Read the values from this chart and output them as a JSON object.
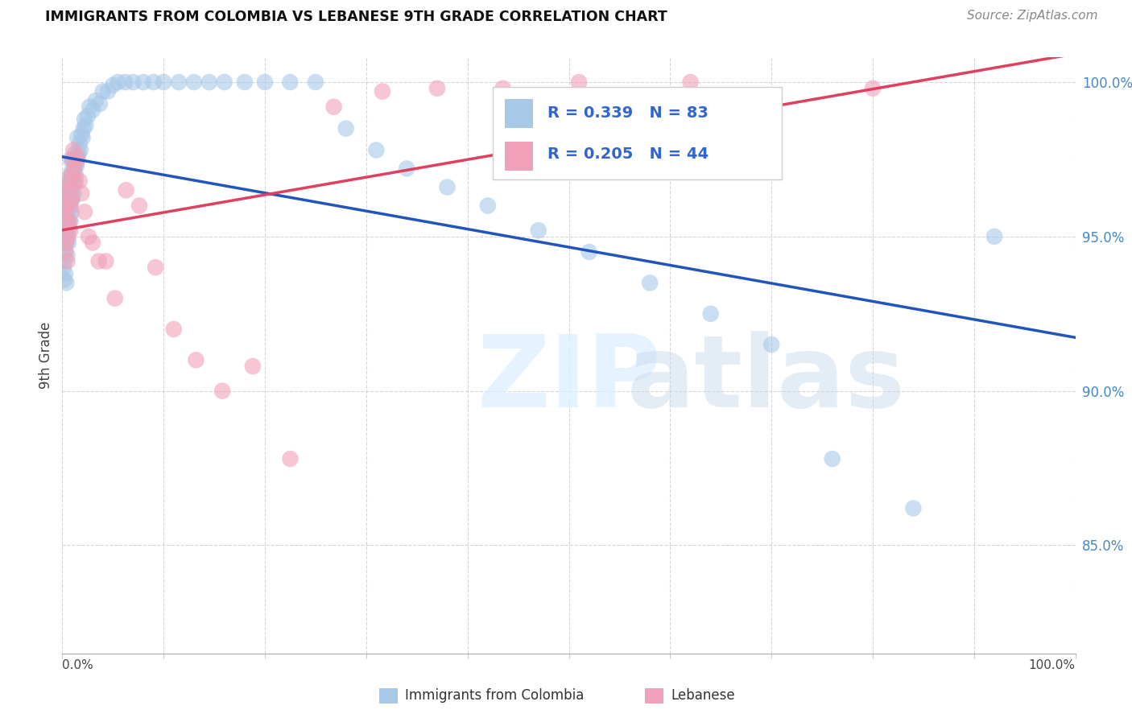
{
  "title": "IMMIGRANTS FROM COLOMBIA VS LEBANESE 9TH GRADE CORRELATION CHART",
  "source": "Source: ZipAtlas.com",
  "ylabel": "9th Grade",
  "xlim": [
    0.0,
    1.0
  ],
  "ylim": [
    0.815,
    1.008
  ],
  "yticks": [
    0.85,
    0.9,
    0.95,
    1.0
  ],
  "ytick_labels": [
    "85.0%",
    "90.0%",
    "95.0%",
    "100.0%"
  ],
  "legend_r_colombia": "R = 0.339",
  "legend_n_colombia": "N = 83",
  "legend_r_lebanese": "R = 0.205",
  "legend_n_lebanese": "N = 44",
  "colombia_color": "#a8c8e8",
  "lebanese_color": "#f0a0b8",
  "colombia_line_color": "#2255bb",
  "lebanese_line_color": "#e04060",
  "background_color": "#ffffff",
  "grid_color": "#cccccc",
  "colombia_label": "Immigrants from Colombia",
  "lebanese_label": "Lebanese",
  "colombia_x": [
    0.001,
    0.002,
    0.002,
    0.003,
    0.003,
    0.003,
    0.004,
    0.004,
    0.004,
    0.004,
    0.005,
    0.005,
    0.005,
    0.005,
    0.006,
    0.006,
    0.006,
    0.006,
    0.007,
    0.007,
    0.007,
    0.008,
    0.008,
    0.008,
    0.008,
    0.009,
    0.009,
    0.009,
    0.01,
    0.01,
    0.01,
    0.011,
    0.011,
    0.012,
    0.012,
    0.013,
    0.013,
    0.014,
    0.015,
    0.015,
    0.016,
    0.017,
    0.018,
    0.019,
    0.02,
    0.021,
    0.022,
    0.023,
    0.025,
    0.027,
    0.03,
    0.033,
    0.037,
    0.04,
    0.045,
    0.05,
    0.055,
    0.062,
    0.07,
    0.08,
    0.09,
    0.1,
    0.115,
    0.13,
    0.145,
    0.16,
    0.18,
    0.2,
    0.225,
    0.25,
    0.28,
    0.31,
    0.34,
    0.38,
    0.42,
    0.47,
    0.52,
    0.58,
    0.64,
    0.7,
    0.76,
    0.84,
    0.92
  ],
  "colombia_y": [
    0.94,
    0.936,
    0.942,
    0.938,
    0.945,
    0.952,
    0.948,
    0.955,
    0.96,
    0.935,
    0.944,
    0.95,
    0.957,
    0.963,
    0.948,
    0.956,
    0.962,
    0.969,
    0.953,
    0.959,
    0.966,
    0.955,
    0.961,
    0.968,
    0.975,
    0.958,
    0.964,
    0.971,
    0.962,
    0.968,
    0.975,
    0.964,
    0.971,
    0.967,
    0.974,
    0.97,
    0.977,
    0.973,
    0.975,
    0.982,
    0.977,
    0.98,
    0.978,
    0.983,
    0.982,
    0.985,
    0.988,
    0.986,
    0.989,
    0.992,
    0.991,
    0.994,
    0.993,
    0.997,
    0.997,
    0.999,
    1.0,
    1.0,
    1.0,
    1.0,
    1.0,
    1.0,
    1.0,
    1.0,
    1.0,
    1.0,
    1.0,
    1.0,
    1.0,
    1.0,
    0.985,
    0.978,
    0.972,
    0.966,
    0.96,
    0.952,
    0.945,
    0.935,
    0.925,
    0.915,
    0.878,
    0.862,
    0.95
  ],
  "lebanese_x": [
    0.002,
    0.003,
    0.003,
    0.004,
    0.004,
    0.005,
    0.005,
    0.006,
    0.006,
    0.007,
    0.007,
    0.008,
    0.008,
    0.009,
    0.009,
    0.01,
    0.011,
    0.012,
    0.013,
    0.014,
    0.015,
    0.017,
    0.019,
    0.022,
    0.026,
    0.03,
    0.036,
    0.043,
    0.052,
    0.063,
    0.076,
    0.092,
    0.11,
    0.132,
    0.158,
    0.188,
    0.225,
    0.268,
    0.316,
    0.37,
    0.435,
    0.51,
    0.62,
    0.8
  ],
  "lebanese_y": [
    0.958,
    0.945,
    0.965,
    0.948,
    0.96,
    0.942,
    0.955,
    0.95,
    0.965,
    0.955,
    0.968,
    0.952,
    0.96,
    0.962,
    0.97,
    0.975,
    0.978,
    0.972,
    0.968,
    0.974,
    0.976,
    0.968,
    0.964,
    0.958,
    0.95,
    0.948,
    0.942,
    0.942,
    0.93,
    0.965,
    0.96,
    0.94,
    0.92,
    0.91,
    0.9,
    0.908,
    0.878,
    0.992,
    0.997,
    0.998,
    0.998,
    1.0,
    1.0,
    0.998
  ]
}
